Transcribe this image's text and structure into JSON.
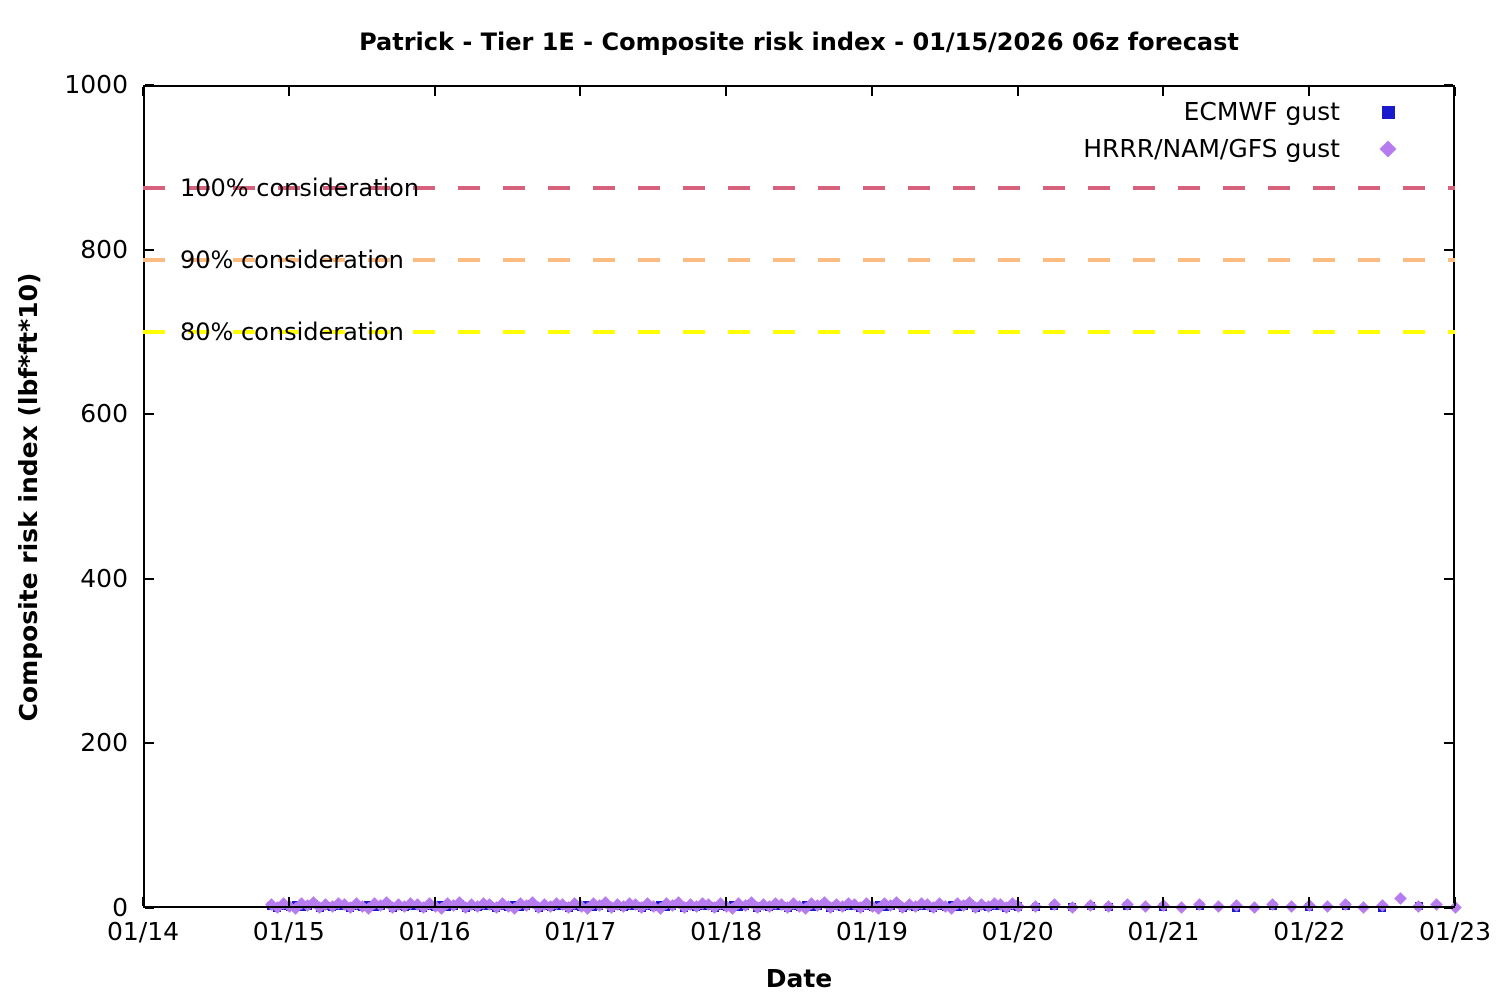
{
  "chart_data": {
    "type": "scatter",
    "title": "Patrick - Tier 1E - Composite risk index - 01/15/2026 06z forecast",
    "xlabel": "Date",
    "ylabel": "Composite risk index (lbf*ft*10)",
    "ylim": [
      0,
      1000
    ],
    "x_domain": [
      14,
      23
    ],
    "grid": false,
    "legend_position": "top-right",
    "x_ticks": [
      {
        "label": "01/14",
        "day": 14
      },
      {
        "label": "01/15",
        "day": 15
      },
      {
        "label": "01/16",
        "day": 16
      },
      {
        "label": "01/17",
        "day": 17
      },
      {
        "label": "01/18",
        "day": 18
      },
      {
        "label": "01/19",
        "day": 19
      },
      {
        "label": "01/20",
        "day": 20
      },
      {
        "label": "01/21",
        "day": 21
      },
      {
        "label": "01/22",
        "day": 22
      },
      {
        "label": "01/23",
        "day": 23
      }
    ],
    "y_ticks": [
      {
        "label": "0",
        "value": 0
      },
      {
        "label": "200",
        "value": 200
      },
      {
        "label": "400",
        "value": 400
      },
      {
        "label": "600",
        "value": 600
      },
      {
        "label": "800",
        "value": 800
      },
      {
        "label": "1000",
        "value": 1000
      }
    ],
    "thresholds": [
      {
        "label": "100% consideration",
        "value": 875,
        "color": "#d5617c"
      },
      {
        "label": "90% consideration",
        "value": 787.5,
        "color": "#fbbc82"
      },
      {
        "label": "80% consideration",
        "value": 700,
        "color": "#ffff00"
      }
    ],
    "series": [
      {
        "name": "ECMWF gust",
        "marker": "square",
        "color": "#1a1acc",
        "segments": [
          {
            "x_start": 14.88,
            "x_end": 20.0,
            "step_days": 0.041667,
            "y_pattern": [
              2,
              0,
              3,
              1,
              4,
              1,
              2,
              5,
              0,
              3,
              1,
              2
            ]
          },
          {
            "x_start": 20.0,
            "x_end": 20.75,
            "step_days": 0.125,
            "y_pattern": [
              2,
              1,
              3,
              1,
              2,
              1,
              3
            ]
          },
          {
            "x_start": 21.0,
            "x_end": 22.75,
            "step_days": 0.25,
            "y_pattern": [
              1,
              2,
              0,
              3,
              1,
              2,
              0,
              2
            ]
          }
        ]
      },
      {
        "name": "HRRR/NAM/GFS gust",
        "marker": "diamond",
        "color": "#b67bee",
        "segments": [
          {
            "x_start": 14.88,
            "x_end": 20.0,
            "step_days": 0.041667,
            "y_pattern": [
              4,
              1,
              6,
              2,
              0,
              5,
              3,
              7,
              1,
              4,
              2,
              6
            ]
          },
          {
            "x_start": 20.0,
            "x_end": 23.0,
            "step_days": 0.125,
            "y_values": [
              3,
              2,
              4,
              1,
              3,
              2,
              4,
              2,
              3,
              1,
              4,
              2,
              3,
              1,
              4,
              2,
              3,
              2,
              4,
              1,
              3,
              12,
              2,
              4,
              1
            ]
          }
        ]
      }
    ]
  }
}
